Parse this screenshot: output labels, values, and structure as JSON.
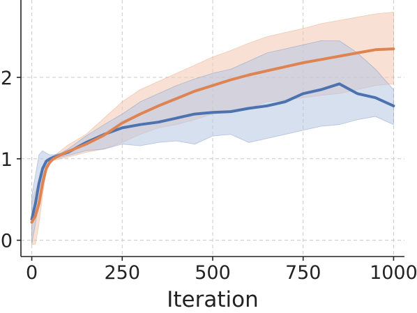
{
  "chart_data": {
    "type": "line",
    "title": "",
    "xlabel": "Iteration",
    "ylabel": "",
    "xlim": [
      -30,
      1030
    ],
    "ylim": [
      -0.2,
      2.95
    ],
    "grid": true,
    "legend": "none",
    "x_ticks": [
      0,
      250,
      500,
      750,
      1000
    ],
    "x_tick_labels": [
      "0",
      "250",
      "500",
      "750",
      "1000"
    ],
    "y_ticks": [
      0,
      1,
      2
    ],
    "y_tick_labels": [
      "0",
      "1",
      "2"
    ],
    "series": [
      {
        "color": "#dd8452",
        "band_color": "#f2c9b0",
        "x": [
          0,
          10,
          20,
          30,
          40,
          50,
          60,
          80,
          100,
          150,
          200,
          250,
          300,
          350,
          400,
          450,
          500,
          550,
          600,
          650,
          700,
          750,
          800,
          850,
          900,
          950,
          1000
        ],
        "y": [
          0.22,
          0.3,
          0.45,
          0.7,
          0.88,
          0.96,
          1.0,
          1.05,
          1.09,
          1.18,
          1.29,
          1.44,
          1.55,
          1.65,
          1.74,
          1.83,
          1.9,
          1.97,
          2.03,
          2.08,
          2.13,
          2.18,
          2.22,
          2.26,
          2.3,
          2.34,
          2.35
        ],
        "lower": [
          -0.05,
          -0.05,
          0.2,
          0.55,
          0.85,
          0.93,
          0.98,
          1.0,
          1.02,
          1.08,
          1.12,
          1.2,
          1.3,
          1.38,
          1.42,
          1.48,
          1.55,
          1.58,
          1.62,
          1.7,
          1.72,
          1.75,
          1.78,
          1.8,
          1.85,
          1.9,
          1.92
        ],
        "upper": [
          0.5,
          0.6,
          0.75,
          0.9,
          0.98,
          1.0,
          1.03,
          1.1,
          1.17,
          1.3,
          1.5,
          1.7,
          1.85,
          1.95,
          2.05,
          2.15,
          2.25,
          2.33,
          2.42,
          2.5,
          2.55,
          2.6,
          2.66,
          2.7,
          2.74,
          2.78,
          2.8
        ]
      },
      {
        "color": "#4c72b0",
        "band_color": "#b6c6e2",
        "x": [
          0,
          10,
          20,
          30,
          40,
          50,
          60,
          80,
          100,
          150,
          200,
          250,
          300,
          350,
          400,
          450,
          500,
          550,
          600,
          650,
          700,
          750,
          800,
          850,
          900,
          950,
          1000
        ],
        "y": [
          0.26,
          0.45,
          0.7,
          0.88,
          0.97,
          1.0,
          1.02,
          1.05,
          1.08,
          1.2,
          1.3,
          1.38,
          1.42,
          1.45,
          1.5,
          1.55,
          1.57,
          1.58,
          1.62,
          1.65,
          1.7,
          1.8,
          1.85,
          1.92,
          1.8,
          1.75,
          1.65
        ],
        "lower": [
          -0.05,
          0.2,
          0.5,
          0.78,
          0.92,
          0.97,
          1.0,
          1.02,
          1.04,
          1.1,
          1.12,
          1.18,
          1.16,
          1.2,
          1.22,
          1.18,
          1.28,
          1.3,
          1.2,
          1.25,
          1.3,
          1.35,
          1.4,
          1.42,
          1.48,
          1.52,
          1.42
        ],
        "upper": [
          0.55,
          0.8,
          1.05,
          1.1,
          1.07,
          1.05,
          1.05,
          1.07,
          1.12,
          1.28,
          1.42,
          1.55,
          1.7,
          1.8,
          1.9,
          1.98,
          2.05,
          2.1,
          2.2,
          2.3,
          2.35,
          2.4,
          2.45,
          2.45,
          2.3,
          2.1,
          1.85
        ]
      }
    ]
  }
}
